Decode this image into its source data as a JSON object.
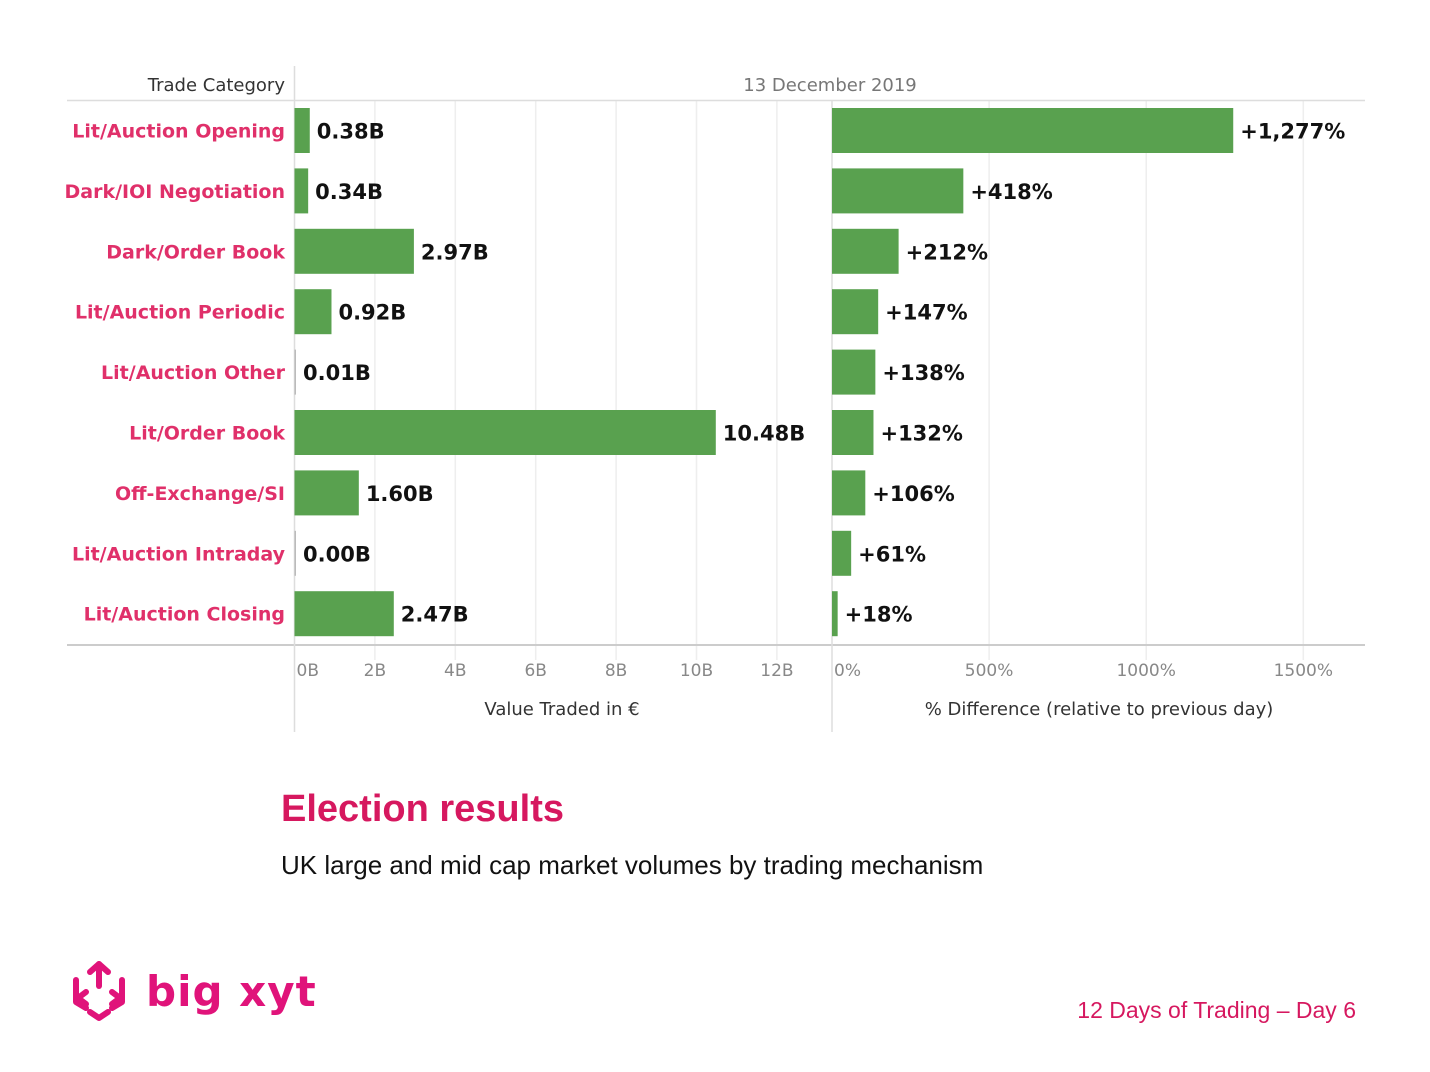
{
  "chart_data": {
    "type": "bar",
    "orientation": "horizontal",
    "header": {
      "category_column": "Trade Category",
      "date": "13 December 2019"
    },
    "categories": [
      "Lit/Auction Opening",
      "Dark/IOI Negotiation",
      "Dark/Order Book",
      "Lit/Auction Periodic",
      "Lit/Auction Other",
      "Lit/Order Book",
      "Off-Exchange/SI",
      "Lit/Auction Intraday",
      "Lit/Auction Closing"
    ],
    "series": [
      {
        "name": "Value Traded in €",
        "unit": "B",
        "values": [
          0.38,
          0.34,
          2.97,
          0.92,
          0.01,
          10.48,
          1.6,
          0.0,
          2.47
        ],
        "labels": [
          "0.38B",
          "0.34B",
          "2.97B",
          "0.92B",
          "0.01B",
          "10.48B",
          "1.60B",
          "0.00B",
          "2.47B"
        ],
        "xlabel": "Value Traded in €",
        "xlim": [
          0,
          13.5
        ],
        "ticks": [
          0,
          2,
          4,
          6,
          8,
          10,
          12
        ],
        "tick_labels": [
          "0B",
          "2B",
          "4B",
          "6B",
          "8B",
          "10B",
          "12B"
        ]
      },
      {
        "name": "% Difference (relative to previous day)",
        "unit": "%",
        "values": [
          1277,
          418,
          212,
          147,
          138,
          132,
          106,
          61,
          18
        ],
        "labels": [
          "+1,277%",
          "+418%",
          "+212%",
          "+147%",
          "+138%",
          "+132%",
          "+106%",
          "+61%",
          "+18%"
        ],
        "xlabel": "% Difference (relative to previous day)",
        "xlim": [
          0,
          1700
        ],
        "ticks": [
          0,
          500,
          1000,
          1500
        ],
        "tick_labels": [
          "0%",
          "500%",
          "1000%",
          "1500%"
        ]
      }
    ],
    "grid": true,
    "legend": "none",
    "colors": {
      "bar": "#59a14f",
      "category_label": "#e0306a",
      "value_label": "#111111"
    }
  },
  "slide": {
    "title": "Election results",
    "subtitle": "UK large and mid cap market volumes by trading mechanism",
    "footer": "12 Days of Trading – Day 6",
    "logo_text": "big xyt",
    "accent_color": "#d6185f"
  }
}
